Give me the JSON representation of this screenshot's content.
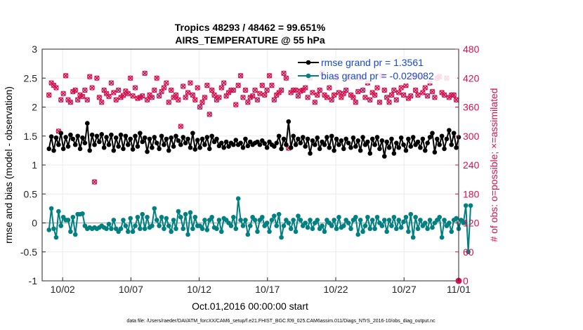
{
  "chart_data": {
    "type": "line",
    "title_line1": "Tropics 48293 / 48462 = 99.651%",
    "title_line2": "AIRS_TEMPERATURE @ 55 hPa",
    "xlabel": "Oct.01,2016 00:00:00 start",
    "ylabel_left": "rmse and bias (model - observation)",
    "ylabel_right": "# of obs: o=possible; ×=assimilated",
    "footer": "data file: /Users/raeder/DAI/ATM_forcXX/CAM6_setup/f.e21.FHIST_BGC.f09_025.CAM6assim.011/Diags_NTrS_2016-10/obs_diag_output.nc",
    "xlim": [
      0.5,
      31
    ],
    "x_ticks": [
      2,
      7,
      12,
      17,
      22,
      27,
      32
    ],
    "x_tick_labels": [
      "10/02",
      "10/07",
      "10/12",
      "10/17",
      "10/22",
      "10/27",
      "11/01"
    ],
    "ylim_left": [
      -1,
      3
    ],
    "y_ticks_left": [
      -1,
      -0.5,
      0,
      0.5,
      1,
      1.5,
      2,
      2.5,
      3
    ],
    "y_tick_labels_left": [
      "-1",
      "-0.5",
      "0",
      "0.5",
      "1",
      "1.5",
      "2",
      "2.5",
      "3"
    ],
    "ylim_right": [
      0,
      480
    ],
    "y_ticks_right": [
      0,
      60,
      120,
      180,
      240,
      300,
      360,
      420,
      480
    ],
    "y_tick_labels_right": [
      "0",
      "60",
      "120",
      "180",
      "240",
      "300",
      "360",
      "420",
      "480"
    ],
    "legend": {
      "position": "top-right",
      "entries": [
        "rmse grand pr = 1.3561",
        "bias grand pr = -0.029082"
      ]
    },
    "colors": {
      "rmse": "#000000",
      "bias": "#008080",
      "obs": "#d6114f",
      "zero_line": "#b0b0b0",
      "axis": "#262626"
    },
    "series": [
      {
        "name": "rmse",
        "values": [
          1.28,
          1.49,
          1.25,
          1.47,
          1.35,
          1.55,
          1.28,
          1.48,
          1.32,
          1.52,
          1.45,
          1.35,
          1.5,
          1.28,
          1.47,
          1.38,
          1.72,
          1.25,
          1.52,
          1.35,
          1.5,
          1.4,
          1.53,
          1.3,
          1.48,
          1.35,
          1.52,
          1.25,
          1.47,
          1.32,
          1.52,
          1.28,
          1.5,
          1.35,
          1.45,
          1.27,
          1.5,
          1.32,
          1.55,
          1.4,
          1.47,
          1.23,
          1.45,
          1.3,
          1.48,
          1.38,
          1.28,
          1.5,
          1.35,
          1.45,
          1.25,
          1.47,
          1.32,
          1.5,
          1.42,
          1.35,
          1.48,
          1.38,
          1.45,
          1.3,
          1.55,
          1.27,
          1.43,
          1.3,
          1.45,
          1.35,
          1.48,
          1.28,
          1.5,
          1.4,
          1.45,
          1.33,
          1.38,
          1.3,
          1.4,
          1.32,
          1.38,
          1.35,
          1.43,
          1.35,
          1.38,
          1.3,
          1.45,
          1.33,
          1.4,
          1.35,
          1.38,
          1.4,
          1.35,
          1.42,
          1.37,
          1.3,
          1.4,
          1.35,
          1.32,
          1.38,
          1.5,
          1.28,
          1.45,
          1.35,
          1.75,
          1.3,
          1.5,
          1.35,
          1.45,
          1.38,
          1.48,
          1.32,
          1.45,
          1.2,
          1.42,
          1.35,
          1.47,
          1.28,
          1.4,
          1.35,
          1.48,
          1.3,
          1.5,
          1.25,
          1.45,
          1.35,
          1.42,
          1.28,
          1.45,
          1.38,
          1.3,
          1.47,
          1.32,
          1.42,
          1.25,
          1.48,
          1.35,
          1.4,
          1.2,
          1.45,
          1.35,
          1.48,
          1.28,
          1.42,
          1.15,
          1.4,
          1.3,
          1.45,
          1.2,
          1.38,
          1.3,
          1.47,
          1.35,
          1.25,
          1.45,
          1.32,
          1.48,
          1.35,
          1.4,
          1.3,
          1.45,
          1.25,
          1.38,
          1.48,
          1.55,
          1.22,
          1.45,
          1.35,
          1.5,
          1.28,
          1.45,
          1.6,
          1.35,
          1.55,
          1.3,
          1.48
        ]
      },
      {
        "name": "bias",
        "values": [
          -0.12,
          0.25,
          -0.1,
          -0.25,
          0.2,
          -0.05,
          0.1,
          0.05,
          0.05,
          -0.15,
          0.1,
          -0.2,
          0.15,
          0.15,
          0.16,
          -0.05,
          -0.1,
          -0.08,
          -0.1,
          -0.08,
          -0.1,
          -0.08,
          -0.05,
          -0.08,
          -0.1,
          -0.02,
          -0.1,
          0.05,
          -0.1,
          -0.15,
          -0.1,
          0.05,
          -0.05,
          -0.15,
          0.08,
          -0.15,
          -0.05,
          0.1,
          -0.1,
          0.15,
          -0.1,
          0.1,
          -0.08,
          -0.05,
          0.25,
          0.05,
          -0.05,
          0.1,
          -0.1,
          0.08,
          -0.05,
          -0.15,
          0.05,
          -0.1,
          0.2,
          0.1,
          -0.1,
          0.15,
          -0.2,
          0.18,
          -0.1,
          0.1,
          -0.05,
          -0.05,
          -0.1,
          0.05,
          -0.12,
          0.05,
          0.1,
          -0.08,
          -0.1,
          0.05,
          -0.15,
          0.08,
          0.05,
          0.0,
          -0.05,
          0.1,
          -0.1,
          0.42,
          0.05,
          -0.05,
          0.05,
          -0.2,
          -0.05,
          0.1,
          0.05,
          -0.15,
          0.05,
          0.1,
          -0.05,
          0.0,
          -0.15,
          0.05,
          0.12,
          -0.05,
          0.15,
          -0.25,
          -0.05,
          0.05,
          0.0,
          -0.1,
          0.05,
          -0.15,
          0.12,
          0.05,
          -0.05,
          0.0,
          -0.08,
          0.05,
          -0.1,
          0.0,
          0.05,
          -0.1,
          -0.05,
          -0.15,
          0.05,
          0.0,
          -0.05,
          0.05,
          -0.1,
          0.1,
          -0.08,
          -0.05,
          0.05,
          0.0,
          -0.1,
          0.05,
          0.1,
          -0.2,
          0.05,
          -0.15,
          -0.05,
          0.1,
          -0.1,
          0.05,
          -0.1,
          0.1,
          0.0,
          -0.05,
          0.05,
          -0.15,
          0.05,
          -0.05,
          0.1,
          -0.1,
          0.05,
          -0.08,
          0.02,
          0.1,
          -0.15,
          0.15,
          -0.25,
          0.1,
          -0.1,
          0.05,
          -0.05,
          0.0,
          -0.1,
          0.05,
          -0.08,
          0.0,
          0.05,
          0.1,
          -0.25,
          0.05,
          -0.05,
          0.0,
          -0.15,
          0.05,
          0.08,
          -0.1,
          0.05,
          0.0,
          0.3,
          -0.5,
          0.3
        ]
      },
      {
        "name": "obs_possible",
        "values": [
          385,
          410,
          405,
          400,
          310,
          375,
          388,
          425,
          375,
          370,
          392,
          395,
          375,
          385,
          382,
          395,
          375,
          423,
          400,
          205,
          420,
          380,
          370,
          395,
          388,
          382,
          410,
          390,
          375,
          395,
          380,
          384,
          393,
          388,
          420,
          383,
          400,
          378,
          380,
          383,
          430,
          375,
          385,
          380,
          395,
          420,
          383,
          392,
          400,
          410,
          370,
          395,
          380,
          385,
          375,
          320,
          403,
          380,
          390,
          410,
          385,
          375,
          400,
          360,
          370,
          380,
          405,
          345,
          395,
          385,
          375,
          380,
          400,
          410,
          383,
          390,
          395,
          395,
          365,
          405,
          425,
          380,
          395,
          370,
          380,
          383,
          395,
          375,
          388,
          405,
          385,
          395,
          425,
          405,
          375,
          385,
          390,
          395,
          430,
          420,
          275,
          390,
          395,
          395,
          383,
          393,
          395,
          400,
          380,
          420,
          390,
          370,
          385,
          395,
          430,
          385,
          380,
          400,
          375,
          385,
          420,
          390,
          380,
          388,
          395,
          420,
          385,
          380,
          370,
          392,
          420,
          395,
          380,
          410,
          375,
          390,
          385,
          400,
          370,
          425,
          395,
          380,
          370,
          385,
          395,
          375,
          390,
          400,
          385,
          405,
          378,
          383,
          425,
          395,
          385,
          423,
          390,
          400,
          383,
          410,
          392,
          380,
          420,
          423,
          390,
          385,
          420,
          380,
          385,
          385,
          375
        ]
      },
      {
        "name": "obs_assimilated",
        "values": [
          385,
          410,
          405,
          400,
          310,
          375,
          388,
          425,
          375,
          370,
          392,
          395,
          375,
          385,
          382,
          395,
          375,
          423,
          400,
          205,
          420,
          380,
          370,
          395,
          388,
          382,
          410,
          390,
          375,
          395,
          380,
          384,
          393,
          388,
          420,
          383,
          400,
          378,
          380,
          383,
          430,
          375,
          385,
          380,
          395,
          420,
          383,
          392,
          400,
          410,
          370,
          395,
          380,
          385,
          375,
          320,
          403,
          380,
          390,
          410,
          385,
          375,
          400,
          360,
          370,
          380,
          405,
          345,
          395,
          385,
          375,
          380,
          400,
          410,
          383,
          390,
          395,
          395,
          365,
          405,
          425,
          380,
          395,
          370,
          380,
          383,
          395,
          375,
          388,
          405,
          385,
          395,
          425,
          405,
          375,
          385,
          390,
          395,
          430,
          420,
          275,
          390,
          395,
          395,
          383,
          393,
          395,
          400,
          380,
          420,
          390,
          370,
          385,
          395,
          430,
          385,
          380,
          400,
          375,
          385,
          420,
          390,
          380,
          388,
          395,
          420,
          385,
          380,
          370,
          392,
          420,
          395,
          380,
          410,
          375,
          390,
          385,
          400,
          370,
          425,
          395,
          380,
          370,
          385,
          395,
          375,
          390,
          400,
          385,
          405,
          378,
          383,
          425,
          395,
          385,
          423,
          390,
          400,
          383,
          410,
          392,
          380,
          420,
          423,
          390,
          385,
          420,
          380,
          385,
          385,
          375
        ]
      }
    ]
  }
}
